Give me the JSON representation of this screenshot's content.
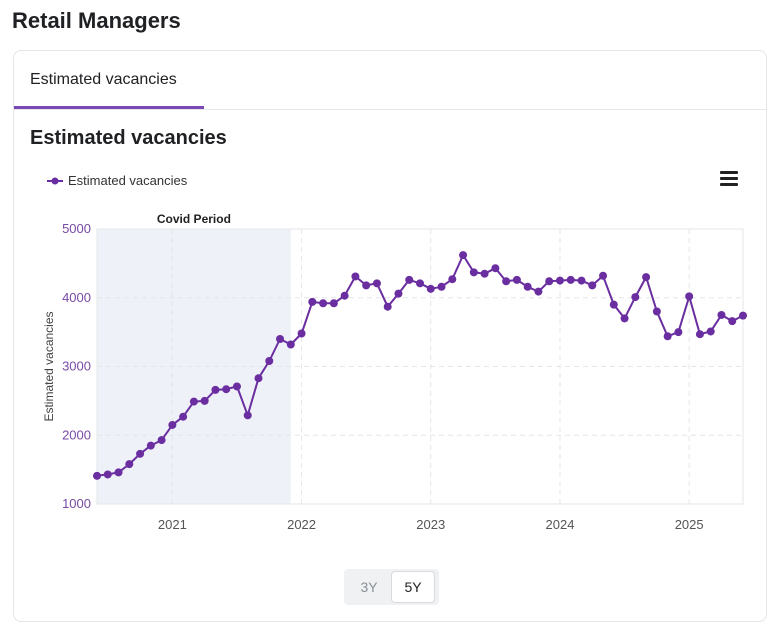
{
  "page": {
    "title": "Retail Managers"
  },
  "tabs": [
    {
      "label": "Estimated vacancies",
      "active": true
    }
  ],
  "range_selector": {
    "options": [
      "3Y",
      "5Y"
    ],
    "selected": "5Y"
  },
  "colors": {
    "series": "#6a2ea0",
    "band": "#eef1f8",
    "accent": "#7b46b5",
    "tick": "#7a4aa6"
  },
  "icons": {
    "menu": "hamburger-menu-icon"
  },
  "chart_data": {
    "type": "line",
    "title": "Estimated vacancies",
    "ylabel": "Estimated vacancies",
    "xlabel": "",
    "ylim": [
      1000,
      5000
    ],
    "yticks": [
      1000,
      2000,
      3000,
      4000,
      5000
    ],
    "ytick_labels": [
      "1000",
      "2000",
      "3000",
      "4000",
      "5000"
    ],
    "xlim": [
      "2020-06",
      "2025-06"
    ],
    "xticks": [
      "2021-01",
      "2022-01",
      "2023-01",
      "2024-01",
      "2025-01"
    ],
    "xtick_labels": [
      "2021",
      "2022",
      "2023",
      "2024",
      "2025"
    ],
    "grid": true,
    "legend": "top-left",
    "band": {
      "label": "Covid Period",
      "from": "2020-06",
      "to": "2021-12"
    },
    "x": [
      "2020-06",
      "2020-07",
      "2020-08",
      "2020-09",
      "2020-10",
      "2020-11",
      "2020-12",
      "2021-01",
      "2021-02",
      "2021-03",
      "2021-04",
      "2021-05",
      "2021-06",
      "2021-07",
      "2021-08",
      "2021-09",
      "2021-10",
      "2021-11",
      "2021-12",
      "2022-01",
      "2022-02",
      "2022-03",
      "2022-04",
      "2022-05",
      "2022-06",
      "2022-07",
      "2022-08",
      "2022-09",
      "2022-10",
      "2022-11",
      "2022-12",
      "2023-01",
      "2023-02",
      "2023-03",
      "2023-04",
      "2023-05",
      "2023-06",
      "2023-07",
      "2023-08",
      "2023-09",
      "2023-10",
      "2023-11",
      "2023-12",
      "2024-01",
      "2024-02",
      "2024-03",
      "2024-04",
      "2024-05",
      "2024-06",
      "2024-07",
      "2024-08",
      "2024-09",
      "2024-10",
      "2024-11",
      "2024-12",
      "2025-01",
      "2025-02",
      "2025-03",
      "2025-04",
      "2025-05",
      "2025-06"
    ],
    "series": [
      {
        "name": "Estimated vacancies",
        "values": [
          1410,
          1430,
          1460,
          1580,
          1730,
          1850,
          1930,
          2150,
          2270,
          2490,
          2500,
          2660,
          2670,
          2710,
          2290,
          2830,
          3080,
          3400,
          3320,
          3480,
          3940,
          3920,
          3920,
          4030,
          4310,
          4180,
          4210,
          3870,
          4060,
          4260,
          4210,
          4130,
          4160,
          4270,
          4620,
          4370,
          4350,
          4430,
          4240,
          4260,
          4160,
          4090,
          4240,
          4250,
          4260,
          4250,
          4180,
          4320,
          3900,
          3700,
          4010,
          4300,
          3800,
          3440,
          3500,
          4020,
          3470,
          3510,
          3750,
          3660,
          3740
        ]
      }
    ]
  }
}
